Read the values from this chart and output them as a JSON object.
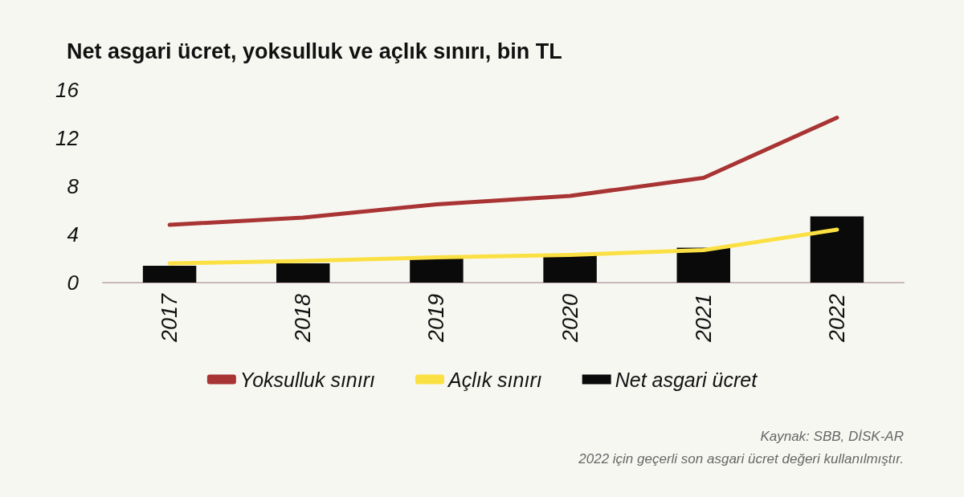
{
  "chart_data": {
    "type": "bar",
    "title": "Net asgari ücret, yoksulluk ve açlık sınırı, bin TL",
    "categories": [
      "2017",
      "2018",
      "2019",
      "2020",
      "2021",
      "2022"
    ],
    "series": [
      {
        "name": "Yoksulluk sınırı",
        "type": "line",
        "color": "#a83434",
        "values": [
          4.8,
          5.4,
          6.5,
          7.2,
          8.7,
          13.7
        ]
      },
      {
        "name": "Açlık sınırı",
        "type": "line",
        "color": "#fbe043",
        "values": [
          1.6,
          1.8,
          2.1,
          2.3,
          2.7,
          4.4
        ]
      },
      {
        "name": "Net asgari ücret",
        "color": "#0a0a0a",
        "values": [
          1.4,
          1.6,
          2.0,
          2.3,
          2.9,
          5.5
        ]
      }
    ],
    "ylim": [
      0,
      16
    ],
    "yticks": [
      0,
      4,
      8,
      12,
      16
    ],
    "grid": false,
    "legend": "bottom",
    "marker": "none",
    "line_style": "solid",
    "annotations": [
      "Kaynak: SBB, DİSK-AR",
      "2022 için geçerli son asgari ücret değeri kullanılmıştır."
    ]
  }
}
